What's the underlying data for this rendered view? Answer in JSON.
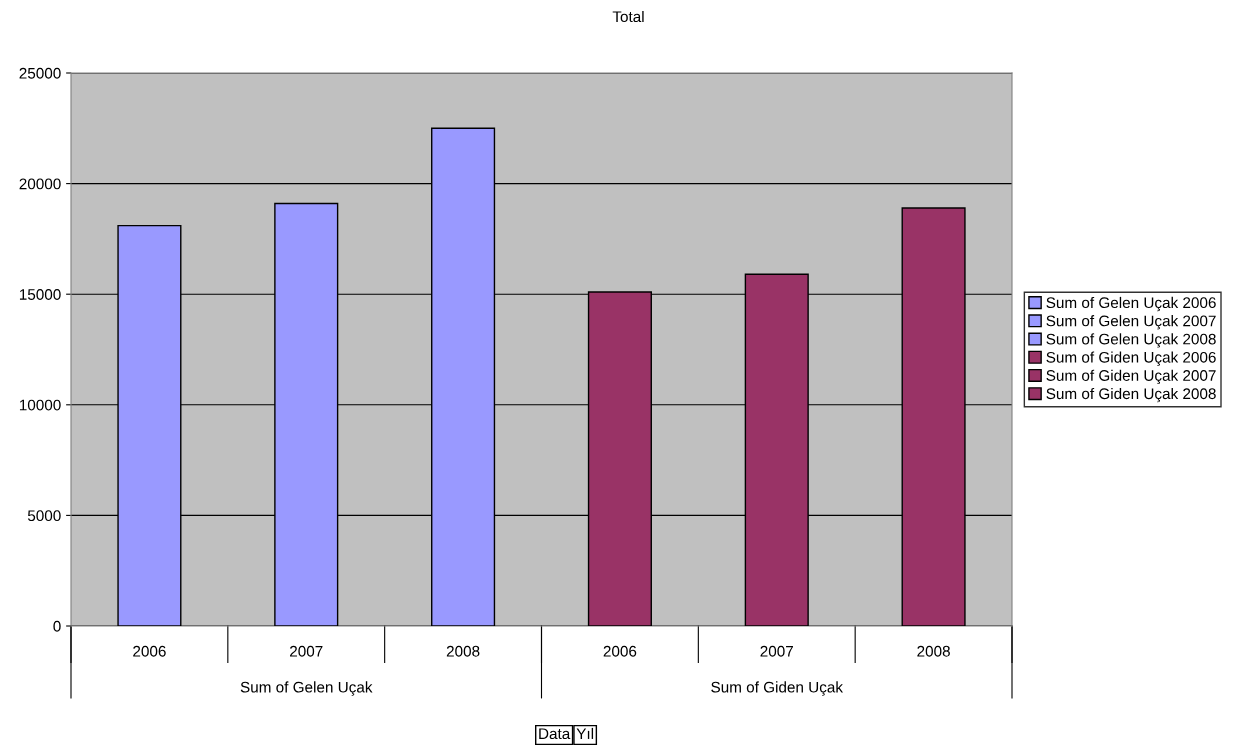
{
  "chart_data": {
    "type": "bar",
    "title": "Total",
    "categories": [
      "2006",
      "2007",
      "2008",
      "2006",
      "2007",
      "2008"
    ],
    "series": [
      {
        "name": "Sum of Gelen Uçak 2006",
        "color": "#9999ff",
        "values": [
          18100,
          null,
          null,
          null,
          null,
          null
        ]
      },
      {
        "name": "Sum of Gelen Uçak 2007",
        "color": "#9999ff",
        "values": [
          null,
          19100,
          null,
          null,
          null,
          null
        ]
      },
      {
        "name": "Sum of Gelen Uçak 2008",
        "color": "#9999ff",
        "values": [
          null,
          null,
          22500,
          null,
          null,
          null
        ]
      },
      {
        "name": "Sum of Giden Uçak 2006",
        "color": "#993366",
        "values": [
          null,
          null,
          null,
          15100,
          null,
          null
        ]
      },
      {
        "name": "Sum of Giden Uçak 2007",
        "color": "#993366",
        "values": [
          null,
          null,
          null,
          null,
          15900,
          null
        ]
      },
      {
        "name": "Sum of Giden Uçak 2008",
        "color": "#993366",
        "values": [
          null,
          null,
          null,
          null,
          null,
          18900
        ]
      }
    ],
    "annotations": [
      "Sum of Gelen Uçak",
      "Sum of Giden Uçak",
      "Data",
      "Yıl"
    ],
    "ylim": [
      0,
      25000
    ],
    "yticks": [
      0,
      5000,
      10000,
      15000,
      20000,
      25000
    ],
    "grid": "y",
    "legend": "right"
  }
}
